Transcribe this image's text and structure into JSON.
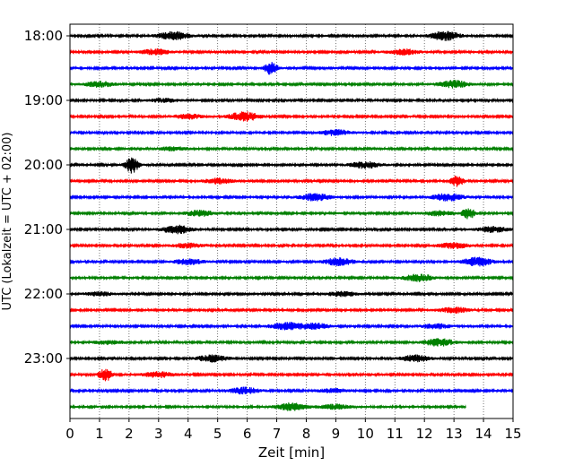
{
  "chart_data": {
    "type": "line",
    "xlabel": "Zeit  [min]",
    "ylabel": "UTC (Lokalzeit = UTC + 02:00)",
    "xlim": [
      0,
      15
    ],
    "xticks": [
      "0",
      "1",
      "2",
      "3",
      "4",
      "5",
      "6",
      "7",
      "8",
      "9",
      "10",
      "11",
      "12",
      "13",
      "14",
      "15"
    ],
    "yticks": [
      "18:00",
      "19:00",
      "20:00",
      "21:00",
      "22:00",
      "23:00"
    ],
    "grid": "vertical dotted at each minute",
    "trace_interval_min": 15,
    "series_colors": [
      "#000000",
      "#ff0000",
      "#0000ff",
      "#008000"
    ],
    "traces": [
      {
        "start": "18:00",
        "end_min": 15,
        "events": [
          [
            3.5,
            4.5
          ],
          [
            12.7,
            5
          ]
        ]
      },
      {
        "start": "18:15",
        "end_min": 15,
        "events": [
          [
            2.9,
            3
          ],
          [
            11.3,
            3
          ]
        ]
      },
      {
        "start": "18:30",
        "end_min": 15,
        "events": [
          [
            6.8,
            7
          ]
        ]
      },
      {
        "start": "18:45",
        "end_min": 15,
        "events": [
          [
            1.0,
            3
          ],
          [
            13.0,
            4
          ]
        ]
      },
      {
        "start": "19:00",
        "end_min": 15,
        "events": [
          [
            3.2,
            2
          ]
        ]
      },
      {
        "start": "19:15",
        "end_min": 15,
        "events": [
          [
            5.9,
            5
          ],
          [
            4.0,
            2.5
          ]
        ]
      },
      {
        "start": "19:30",
        "end_min": 15,
        "events": [
          [
            9.0,
            3
          ]
        ]
      },
      {
        "start": "19:45",
        "end_min": 15,
        "events": [
          [
            3.5,
            2
          ]
        ]
      },
      {
        "start": "20:00",
        "end_min": 15,
        "events": [
          [
            2.1,
            9
          ],
          [
            10.0,
            3.5
          ]
        ]
      },
      {
        "start": "20:15",
        "end_min": 15,
        "events": [
          [
            13.1,
            6
          ],
          [
            5.0,
            3
          ]
        ]
      },
      {
        "start": "20:30",
        "end_min": 15,
        "events": [
          [
            8.3,
            4
          ],
          [
            12.8,
            4
          ]
        ]
      },
      {
        "start": "20:45",
        "end_min": 15,
        "events": [
          [
            13.5,
            6
          ],
          [
            4.4,
            3
          ],
          [
            12.5,
            2.5
          ]
        ]
      },
      {
        "start": "21:00",
        "end_min": 15,
        "events": [
          [
            3.6,
            4.5
          ],
          [
            14.3,
            3
          ]
        ]
      },
      {
        "start": "21:15",
        "end_min": 15,
        "events": [
          [
            13.0,
            3
          ],
          [
            4.0,
            2.5
          ]
        ]
      },
      {
        "start": "21:30",
        "end_min": 15,
        "events": [
          [
            9.1,
            4
          ],
          [
            13.8,
            4.5
          ],
          [
            4.0,
            3
          ]
        ]
      },
      {
        "start": "21:45",
        "end_min": 15,
        "events": [
          [
            11.8,
            4
          ]
        ]
      },
      {
        "start": "22:00",
        "end_min": 15,
        "events": [
          [
            9.2,
            2.5
          ],
          [
            1.0,
            2
          ]
        ]
      },
      {
        "start": "22:15",
        "end_min": 15,
        "events": [
          [
            13.0,
            3
          ]
        ]
      },
      {
        "start": "22:30",
        "end_min": 15,
        "events": [
          [
            7.3,
            4
          ],
          [
            8.3,
            3
          ],
          [
            12.4,
            2.5
          ]
        ]
      },
      {
        "start": "22:45",
        "end_min": 15,
        "events": [
          [
            12.5,
            4
          ],
          [
            1.3,
            2
          ]
        ]
      },
      {
        "start": "23:00",
        "end_min": 15,
        "events": [
          [
            4.8,
            3.5
          ],
          [
            11.7,
            3.5
          ]
        ]
      },
      {
        "start": "23:15",
        "end_min": 15,
        "events": [
          [
            1.2,
            7
          ],
          [
            3.0,
            3
          ]
        ]
      },
      {
        "start": "23:30",
        "end_min": 15,
        "events": [
          [
            5.9,
            3.5
          ],
          [
            8.9,
            2
          ]
        ]
      },
      {
        "start": "23:45",
        "end_min": 13.4,
        "events": [
          [
            7.5,
            4
          ],
          [
            9.0,
            2.5
          ]
        ]
      }
    ]
  }
}
